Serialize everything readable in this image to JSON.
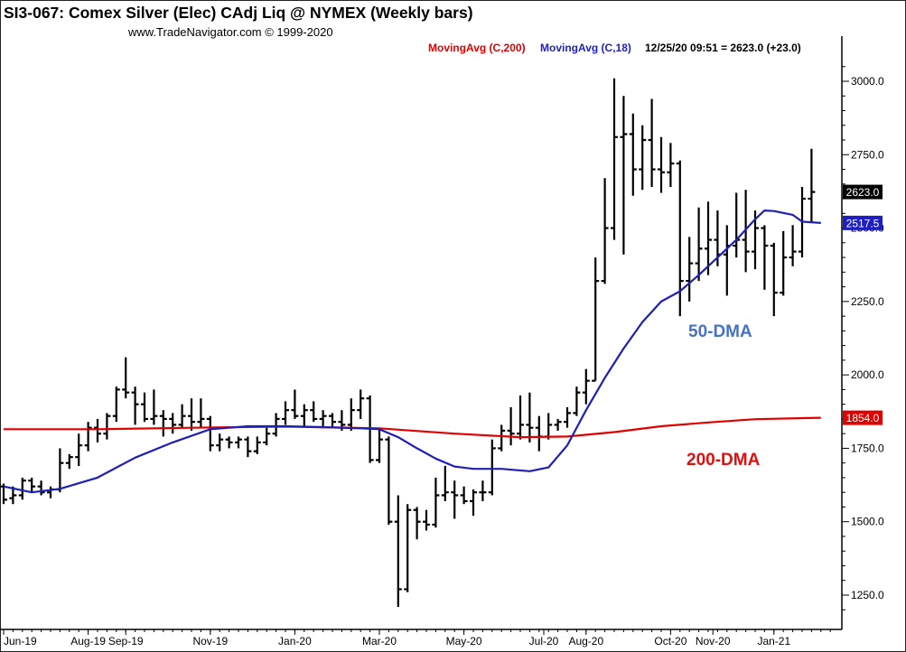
{
  "header": {
    "title": "SI3-067:  Comex Silver (Elec) CAdj Liq @ NYMEX  (Weekly bars)",
    "copyright": "www.TradeNavigator.com © 1999-2020",
    "ma200_label": "MovingAvg (C,200)",
    "ma18_label": "MovingAvg (C,18)",
    "quote": "12/25/20 09:51 = 2623.0 (+23.0)"
  },
  "annotations": {
    "dma50": "50-DMA",
    "dma200": "200-DMA"
  },
  "colors": {
    "price_bars": "#000000",
    "ma200": "#e00000",
    "ma18": "#1f1fb4",
    "last_price_badge": "#000000",
    "ma18_badge": "#1f1fc0",
    "ma200_badge": "#e00000",
    "annotation_50": "#4472c4",
    "annotation_200": "#e01010"
  },
  "chart_data": {
    "type": "ohlc",
    "title": "SI3-067:  Comex Silver (Elec) CAdj Liq @ NYMEX  (Weekly bars)",
    "xlabel": "",
    "ylabel": "",
    "ylim": [
      1150,
      3150
    ],
    "y_ticks": [
      1250,
      1500,
      1750,
      2000,
      2250,
      2500,
      2750,
      3000
    ],
    "y_tick_labels": [
      "1250.0",
      "1500.0",
      "1750.0",
      "2000.0",
      "2250.0",
      "2500.0",
      "2750.0",
      "3000.0"
    ],
    "x_ticks": [
      {
        "label": "Jun-19",
        "week": 0
      },
      {
        "label": "Aug-19",
        "week": 9
      },
      {
        "label": "Sep-19",
        "week": 13
      },
      {
        "label": "Nov-19",
        "week": 22
      },
      {
        "label": "Jan-20",
        "week": 31
      },
      {
        "label": "Mar-20",
        "week": 40
      },
      {
        "label": "May-20",
        "week": 49
      },
      {
        "label": "Jul-20",
        "week": 57.5
      },
      {
        "label": "Aug-20",
        "week": 62
      },
      {
        "label": "Oct-20",
        "week": 71
      },
      {
        "label": "Nov-20",
        "week": 75.5
      },
      {
        "label": "Jan-21",
        "week": 82
      }
    ],
    "grid": false,
    "bars": [
      {
        "o": 1620,
        "h": 1630,
        "l": 1560,
        "c": 1575
      },
      {
        "o": 1580,
        "h": 1620,
        "l": 1560,
        "c": 1590
      },
      {
        "o": 1590,
        "h": 1650,
        "l": 1575,
        "c": 1640
      },
      {
        "o": 1640,
        "h": 1650,
        "l": 1600,
        "c": 1620
      },
      {
        "o": 1620,
        "h": 1640,
        "l": 1590,
        "c": 1600
      },
      {
        "o": 1600,
        "h": 1620,
        "l": 1580,
        "c": 1610
      },
      {
        "o": 1610,
        "h": 1750,
        "l": 1600,
        "c": 1700
      },
      {
        "o": 1700,
        "h": 1730,
        "l": 1680,
        "c": 1720
      },
      {
        "o": 1720,
        "h": 1800,
        "l": 1690,
        "c": 1760
      },
      {
        "o": 1760,
        "h": 1840,
        "l": 1740,
        "c": 1820
      },
      {
        "o": 1820,
        "h": 1850,
        "l": 1770,
        "c": 1800
      },
      {
        "o": 1800,
        "h": 1870,
        "l": 1780,
        "c": 1860
      },
      {
        "o": 1860,
        "h": 1960,
        "l": 1840,
        "c": 1950
      },
      {
        "o": 1950,
        "h": 2060,
        "l": 1920,
        "c": 1940
      },
      {
        "o": 1940,
        "h": 1960,
        "l": 1830,
        "c": 1900
      },
      {
        "o": 1900,
        "h": 1940,
        "l": 1840,
        "c": 1850
      },
      {
        "o": 1850,
        "h": 1950,
        "l": 1830,
        "c": 1860
      },
      {
        "o": 1860,
        "h": 1880,
        "l": 1790,
        "c": 1850
      },
      {
        "o": 1850,
        "h": 1870,
        "l": 1800,
        "c": 1830
      },
      {
        "o": 1830,
        "h": 1900,
        "l": 1820,
        "c": 1860
      },
      {
        "o": 1860,
        "h": 1920,
        "l": 1810,
        "c": 1840
      },
      {
        "o": 1840,
        "h": 1920,
        "l": 1820,
        "c": 1850
      },
      {
        "o": 1850,
        "h": 1860,
        "l": 1740,
        "c": 1760
      },
      {
        "o": 1760,
        "h": 1800,
        "l": 1740,
        "c": 1780
      },
      {
        "o": 1780,
        "h": 1790,
        "l": 1750,
        "c": 1770
      },
      {
        "o": 1770,
        "h": 1790,
        "l": 1750,
        "c": 1780
      },
      {
        "o": 1780,
        "h": 1790,
        "l": 1720,
        "c": 1740
      },
      {
        "o": 1740,
        "h": 1790,
        "l": 1730,
        "c": 1770
      },
      {
        "o": 1770,
        "h": 1820,
        "l": 1760,
        "c": 1800
      },
      {
        "o": 1800,
        "h": 1870,
        "l": 1790,
        "c": 1850
      },
      {
        "o": 1850,
        "h": 1910,
        "l": 1830,
        "c": 1880
      },
      {
        "o": 1880,
        "h": 1950,
        "l": 1850,
        "c": 1860
      },
      {
        "o": 1860,
        "h": 1900,
        "l": 1820,
        "c": 1880
      },
      {
        "o": 1880,
        "h": 1910,
        "l": 1840,
        "c": 1850
      },
      {
        "o": 1850,
        "h": 1880,
        "l": 1820,
        "c": 1860
      },
      {
        "o": 1860,
        "h": 1870,
        "l": 1820,
        "c": 1840
      },
      {
        "o": 1840,
        "h": 1880,
        "l": 1810,
        "c": 1830
      },
      {
        "o": 1830,
        "h": 1920,
        "l": 1810,
        "c": 1880
      },
      {
        "o": 1880,
        "h": 1950,
        "l": 1850,
        "c": 1920
      },
      {
        "o": 1920,
        "h": 1930,
        "l": 1700,
        "c": 1710
      },
      {
        "o": 1710,
        "h": 1820,
        "l": 1700,
        "c": 1780
      },
      {
        "o": 1780,
        "h": 1790,
        "l": 1490,
        "c": 1500
      },
      {
        "o": 1500,
        "h": 1590,
        "l": 1210,
        "c": 1270
      },
      {
        "o": 1270,
        "h": 1560,
        "l": 1260,
        "c": 1540
      },
      {
        "o": 1540,
        "h": 1550,
        "l": 1440,
        "c": 1500
      },
      {
        "o": 1500,
        "h": 1540,
        "l": 1470,
        "c": 1490
      },
      {
        "o": 1490,
        "h": 1650,
        "l": 1480,
        "c": 1590
      },
      {
        "o": 1590,
        "h": 1690,
        "l": 1570,
        "c": 1600
      },
      {
        "o": 1600,
        "h": 1640,
        "l": 1510,
        "c": 1590
      },
      {
        "o": 1590,
        "h": 1620,
        "l": 1560,
        "c": 1570
      },
      {
        "o": 1570,
        "h": 1610,
        "l": 1520,
        "c": 1600
      },
      {
        "o": 1600,
        "h": 1640,
        "l": 1570,
        "c": 1600
      },
      {
        "o": 1600,
        "h": 1780,
        "l": 1590,
        "c": 1750
      },
      {
        "o": 1750,
        "h": 1830,
        "l": 1740,
        "c": 1810
      },
      {
        "o": 1810,
        "h": 1890,
        "l": 1760,
        "c": 1800
      },
      {
        "o": 1800,
        "h": 1930,
        "l": 1780,
        "c": 1830
      },
      {
        "o": 1830,
        "h": 1940,
        "l": 1770,
        "c": 1820
      },
      {
        "o": 1820,
        "h": 1860,
        "l": 1740,
        "c": 1790
      },
      {
        "o": 1790,
        "h": 1870,
        "l": 1780,
        "c": 1830
      },
      {
        "o": 1830,
        "h": 1850,
        "l": 1810,
        "c": 1840
      },
      {
        "o": 1840,
        "h": 1890,
        "l": 1820,
        "c": 1870
      },
      {
        "o": 1870,
        "h": 1960,
        "l": 1860,
        "c": 1940
      },
      {
        "o": 1940,
        "h": 2020,
        "l": 1900,
        "c": 1980
      },
      {
        "o": 1980,
        "h": 2400,
        "l": 1980,
        "c": 2320
      },
      {
        "o": 2320,
        "h": 2670,
        "l": 2310,
        "c": 2500
      },
      {
        "o": 2500,
        "h": 3010,
        "l": 2460,
        "c": 2810
      },
      {
        "o": 2810,
        "h": 2950,
        "l": 2410,
        "c": 2820
      },
      {
        "o": 2820,
        "h": 2890,
        "l": 2610,
        "c": 2700
      },
      {
        "o": 2700,
        "h": 2850,
        "l": 2630,
        "c": 2800
      },
      {
        "o": 2800,
        "h": 2940,
        "l": 2640,
        "c": 2700
      },
      {
        "o": 2700,
        "h": 2810,
        "l": 2620,
        "c": 2690
      },
      {
        "o": 2690,
        "h": 2790,
        "l": 2640,
        "c": 2720
      },
      {
        "o": 2720,
        "h": 2730,
        "l": 2200,
        "c": 2320
      },
      {
        "o": 2320,
        "h": 2470,
        "l": 2250,
        "c": 2380
      },
      {
        "o": 2380,
        "h": 2570,
        "l": 2320,
        "c": 2430
      },
      {
        "o": 2430,
        "h": 2590,
        "l": 2340,
        "c": 2460
      },
      {
        "o": 2460,
        "h": 2560,
        "l": 2370,
        "c": 2410
      },
      {
        "o": 2410,
        "h": 2510,
        "l": 2270,
        "c": 2440
      },
      {
        "o": 2440,
        "h": 2620,
        "l": 2400,
        "c": 2460
      },
      {
        "o": 2460,
        "h": 2630,
        "l": 2350,
        "c": 2420
      },
      {
        "o": 2420,
        "h": 2560,
        "l": 2360,
        "c": 2500
      },
      {
        "o": 2500,
        "h": 2510,
        "l": 2290,
        "c": 2440
      },
      {
        "o": 2440,
        "h": 2450,
        "l": 2200,
        "c": 2280
      },
      {
        "o": 2280,
        "h": 2490,
        "l": 2270,
        "c": 2400
      },
      {
        "o": 2400,
        "h": 2510,
        "l": 2370,
        "c": 2420
      },
      {
        "o": 2420,
        "h": 2640,
        "l": 2400,
        "c": 2600
      },
      {
        "o": 2600,
        "h": 2770,
        "l": 2520,
        "c": 2623
      }
    ],
    "series": [
      {
        "name": "MovingAvg (C,200)",
        "color": "#e00000",
        "points": [
          [
            0,
            1815
          ],
          [
            10,
            1815
          ],
          [
            20,
            1820
          ],
          [
            30,
            1824
          ],
          [
            40,
            1818
          ],
          [
            48,
            1800
          ],
          [
            55,
            1788
          ],
          [
            60,
            1790
          ],
          [
            65,
            1805
          ],
          [
            70,
            1825
          ],
          [
            75,
            1838
          ],
          [
            80,
            1849
          ],
          [
            87,
            1854
          ]
        ]
      },
      {
        "name": "MovingAvg (C,18)",
        "color": "#1f1fb4",
        "points": [
          [
            0,
            1620
          ],
          [
            3,
            1600
          ],
          [
            6,
            1612
          ],
          [
            10,
            1650
          ],
          [
            14,
            1718
          ],
          [
            18,
            1770
          ],
          [
            22,
            1815
          ],
          [
            26,
            1825
          ],
          [
            30,
            1825
          ],
          [
            34,
            1822
          ],
          [
            38,
            1818
          ],
          [
            40,
            1815
          ],
          [
            42,
            1788
          ],
          [
            44,
            1750
          ],
          [
            46,
            1715
          ],
          [
            48,
            1688
          ],
          [
            50,
            1680
          ],
          [
            53,
            1680
          ],
          [
            56,
            1672
          ],
          [
            58,
            1685
          ],
          [
            60,
            1760
          ],
          [
            62,
            1880
          ],
          [
            64,
            1990
          ],
          [
            66,
            2090
          ],
          [
            68,
            2180
          ],
          [
            70,
            2250
          ],
          [
            72,
            2285
          ],
          [
            74,
            2340
          ],
          [
            76,
            2400
          ],
          [
            78,
            2460
          ],
          [
            80,
            2530
          ],
          [
            81,
            2560
          ],
          [
            82,
            2558
          ],
          [
            84,
            2545
          ],
          [
            85,
            2522
          ],
          [
            87,
            2517.5
          ]
        ]
      }
    ],
    "price_labels": [
      {
        "text": "2623.0",
        "value": 2623.0,
        "kind": "last"
      },
      {
        "text": "2517.5",
        "value": 2517.5,
        "kind": "ma18"
      },
      {
        "text": "1854.0",
        "value": 1854.0,
        "kind": "ma200"
      }
    ],
    "annotations": [
      "50-DMA",
      "200-DMA"
    ]
  }
}
